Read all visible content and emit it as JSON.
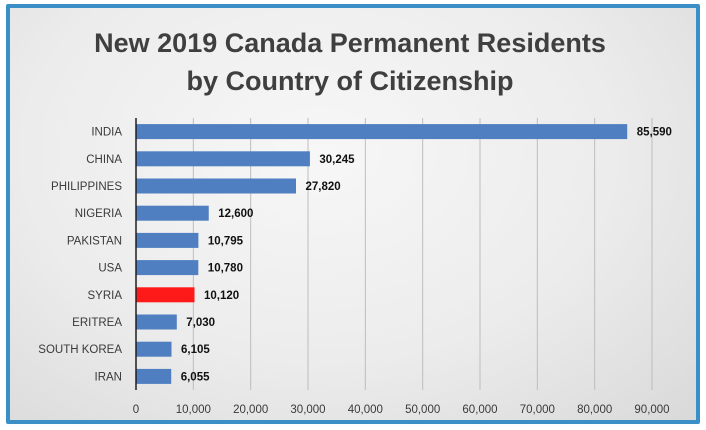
{
  "chart_data": {
    "type": "bar",
    "orientation": "horizontal",
    "title_line1": "New 2019 Canada Permanent Residents",
    "title_line2": "by Country of Citizenship",
    "categories": [
      "INDIA",
      "CHINA",
      "PHILIPPINES",
      "NIGERIA",
      "PAKISTAN",
      "USA",
      "SYRIA",
      "ERITREA",
      "SOUTH KOREA",
      "IRAN"
    ],
    "values": [
      85590,
      30245,
      27820,
      12600,
      10795,
      10780,
      10120,
      7030,
      6105,
      6055
    ],
    "value_labels": [
      "85,590",
      "30,245",
      "27,820",
      "12,600",
      "10,795",
      "10,780",
      "10,120",
      "7,030",
      "6,105",
      "6,055"
    ],
    "x_ticks": [
      0,
      10000,
      20000,
      30000,
      40000,
      50000,
      60000,
      70000,
      80000,
      90000
    ],
    "x_tick_labels": [
      "0",
      "10,000",
      "20,000",
      "30,000",
      "40,000",
      "50,000",
      "60,000",
      "70,000",
      "80,000",
      "90,000"
    ],
    "xlim": [
      0,
      90000
    ],
    "grid": "vertical",
    "legend": "none",
    "bar_color": "#4f7fc1",
    "highlight_color": "#ff1a1a",
    "highlight_category": "SYRIA"
  }
}
